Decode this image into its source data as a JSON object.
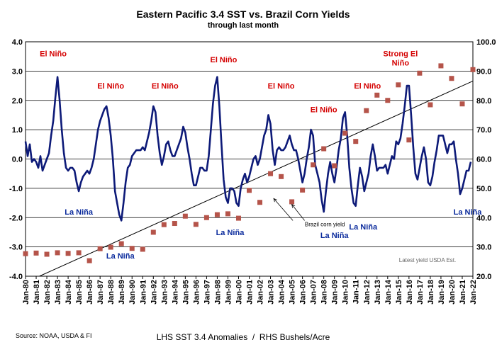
{
  "chart_data": {
    "type": "line",
    "title": "Eastern Pacific 3.4 SST vs. Brazil Corn Yields",
    "subtitle": "through last month",
    "left_axis": {
      "ylim": [
        -4.0,
        4.0
      ],
      "ticks": [
        "-4.0",
        "-3.0",
        "-2.0",
        "-1.0",
        "0.0",
        "1.0",
        "2.0",
        "3.0",
        "4.0"
      ]
    },
    "right_axis": {
      "ylim": [
        20.0,
        100.0
      ],
      "ticks": [
        "20.0",
        "30.0",
        "40.0",
        "50.0",
        "60.0",
        "70.0",
        "80.0",
        "90.0",
        "100.0"
      ]
    },
    "x_ticks": [
      "Jan-80",
      "Jan-81",
      "Jan-82",
      "Jan-83",
      "Jan-84",
      "Jan-85",
      "Jan-86",
      "Jan-87",
      "Jan-88",
      "Jan-89",
      "Jan-90",
      "Jan-91",
      "Jan-92",
      "Jan-93",
      "Jan-94",
      "Jan-95",
      "Jan-96",
      "Jan-97",
      "Jan-98",
      "Jan-99",
      "Jan-00",
      "Jan-01",
      "Jan-02",
      "Jan-03",
      "Jan-04",
      "Jan-05",
      "Jan-06",
      "Jan-07",
      "Jan-08",
      "Jan-09",
      "Jan-10",
      "Jan-11",
      "Jan-12",
      "Jan-13",
      "Jan-14",
      "Jan-15",
      "Jan-16",
      "Jan-17",
      "Jan-18",
      "Jan-19",
      "Jan-20",
      "Jan-21",
      "Jan-22"
    ],
    "grid": "horizontal",
    "series": [
      {
        "name": "SST 3.4 Anomalies",
        "axis": "left",
        "color": "#0d1a78",
        "points": [
          [
            1980.0,
            0.6
          ],
          [
            1980.2,
            0.1
          ],
          [
            1980.4,
            0.5
          ],
          [
            1980.6,
            -0.1
          ],
          [
            1980.8,
            0.0
          ],
          [
            1981.0,
            -0.1
          ],
          [
            1981.2,
            -0.3
          ],
          [
            1981.4,
            0.1
          ],
          [
            1981.6,
            -0.4
          ],
          [
            1981.8,
            -0.2
          ],
          [
            1982.0,
            0.0
          ],
          [
            1982.2,
            0.2
          ],
          [
            1982.4,
            0.8
          ],
          [
            1982.6,
            1.3
          ],
          [
            1982.8,
            2.1
          ],
          [
            1983.0,
            2.8
          ],
          [
            1983.2,
            2.0
          ],
          [
            1983.4,
            1.0
          ],
          [
            1983.6,
            0.2
          ],
          [
            1983.8,
            -0.3
          ],
          [
            1984.0,
            -0.4
          ],
          [
            1984.2,
            -0.3
          ],
          [
            1984.4,
            -0.3
          ],
          [
            1984.6,
            -0.4
          ],
          [
            1984.8,
            -0.8
          ],
          [
            1985.0,
            -1.1
          ],
          [
            1985.2,
            -0.8
          ],
          [
            1985.4,
            -0.6
          ],
          [
            1985.6,
            -0.5
          ],
          [
            1985.8,
            -0.4
          ],
          [
            1986.0,
            -0.5
          ],
          [
            1986.2,
            -0.3
          ],
          [
            1986.4,
            0.0
          ],
          [
            1986.6,
            0.5
          ],
          [
            1986.8,
            1.0
          ],
          [
            1987.0,
            1.3
          ],
          [
            1987.2,
            1.5
          ],
          [
            1987.4,
            1.7
          ],
          [
            1987.6,
            1.8
          ],
          [
            1987.8,
            1.4
          ],
          [
            1988.0,
            0.8
          ],
          [
            1988.2,
            0.0
          ],
          [
            1988.4,
            -1.1
          ],
          [
            1988.6,
            -1.5
          ],
          [
            1988.8,
            -1.9
          ],
          [
            1989.0,
            -2.1
          ],
          [
            1989.2,
            -1.5
          ],
          [
            1989.4,
            -0.8
          ],
          [
            1989.6,
            -0.3
          ],
          [
            1989.8,
            -0.2
          ],
          [
            1990.0,
            0.1
          ],
          [
            1990.2,
            0.2
          ],
          [
            1990.4,
            0.3
          ],
          [
            1990.6,
            0.3
          ],
          [
            1990.8,
            0.3
          ],
          [
            1991.0,
            0.4
          ],
          [
            1991.2,
            0.3
          ],
          [
            1991.4,
            0.6
          ],
          [
            1991.6,
            0.9
          ],
          [
            1991.8,
            1.3
          ],
          [
            1992.0,
            1.8
          ],
          [
            1992.2,
            1.6
          ],
          [
            1992.4,
            0.8
          ],
          [
            1992.6,
            0.2
          ],
          [
            1992.8,
            -0.2
          ],
          [
            1993.0,
            0.1
          ],
          [
            1993.2,
            0.5
          ],
          [
            1993.4,
            0.6
          ],
          [
            1993.6,
            0.3
          ],
          [
            1993.8,
            0.1
          ],
          [
            1994.0,
            0.1
          ],
          [
            1994.2,
            0.3
          ],
          [
            1994.4,
            0.5
          ],
          [
            1994.6,
            0.7
          ],
          [
            1994.8,
            1.1
          ],
          [
            1995.0,
            0.9
          ],
          [
            1995.2,
            0.4
          ],
          [
            1995.4,
            0.0
          ],
          [
            1995.6,
            -0.5
          ],
          [
            1995.8,
            -0.9
          ],
          [
            1996.0,
            -0.9
          ],
          [
            1996.2,
            -0.6
          ],
          [
            1996.4,
            -0.3
          ],
          [
            1996.6,
            -0.3
          ],
          [
            1996.8,
            -0.4
          ],
          [
            1997.0,
            -0.4
          ],
          [
            1997.2,
            0.1
          ],
          [
            1997.4,
            1.0
          ],
          [
            1997.6,
            1.9
          ],
          [
            1997.8,
            2.5
          ],
          [
            1998.0,
            2.8
          ],
          [
            1998.2,
            1.8
          ],
          [
            1998.4,
            0.5
          ],
          [
            1998.6,
            -0.7
          ],
          [
            1998.8,
            -1.3
          ],
          [
            1999.0,
            -1.5
          ],
          [
            1999.2,
            -1.0
          ],
          [
            1999.4,
            -1.0
          ],
          [
            1999.6,
            -1.1
          ],
          [
            1999.8,
            -1.5
          ],
          [
            2000.0,
            -1.6
          ],
          [
            2000.2,
            -1.0
          ],
          [
            2000.4,
            -0.7
          ],
          [
            2000.6,
            -0.5
          ],
          [
            2000.8,
            -0.8
          ],
          [
            2001.0,
            -0.6
          ],
          [
            2001.2,
            -0.3
          ],
          [
            2001.4,
            0.0
          ],
          [
            2001.6,
            0.1
          ],
          [
            2001.8,
            -0.2
          ],
          [
            2002.0,
            0.0
          ],
          [
            2002.2,
            0.4
          ],
          [
            2002.4,
            0.8
          ],
          [
            2002.6,
            1.0
          ],
          [
            2002.8,
            1.5
          ],
          [
            2003.0,
            1.2
          ],
          [
            2003.2,
            0.3
          ],
          [
            2003.4,
            -0.2
          ],
          [
            2003.6,
            0.3
          ],
          [
            2003.8,
            0.4
          ],
          [
            2004.0,
            0.3
          ],
          [
            2004.2,
            0.3
          ],
          [
            2004.4,
            0.4
          ],
          [
            2004.6,
            0.6
          ],
          [
            2004.8,
            0.8
          ],
          [
            2005.0,
            0.5
          ],
          [
            2005.2,
            0.3
          ],
          [
            2005.4,
            0.3
          ],
          [
            2005.6,
            0.0
          ],
          [
            2005.8,
            -0.4
          ],
          [
            2006.0,
            -0.8
          ],
          [
            2006.2,
            -0.5
          ],
          [
            2006.4,
            0.0
          ],
          [
            2006.6,
            0.4
          ],
          [
            2006.8,
            1.0
          ],
          [
            2007.0,
            0.8
          ],
          [
            2007.2,
            -0.2
          ],
          [
            2007.4,
            -0.5
          ],
          [
            2007.6,
            -0.8
          ],
          [
            2007.8,
            -1.4
          ],
          [
            2008.0,
            -1.8
          ],
          [
            2008.2,
            -1.1
          ],
          [
            2008.4,
            -0.5
          ],
          [
            2008.6,
            -0.1
          ],
          [
            2008.8,
            -0.5
          ],
          [
            2009.0,
            -0.8
          ],
          [
            2009.2,
            -0.3
          ],
          [
            2009.4,
            0.3
          ],
          [
            2009.6,
            0.7
          ],
          [
            2009.8,
            1.4
          ],
          [
            2010.0,
            1.6
          ],
          [
            2010.2,
            0.8
          ],
          [
            2010.4,
            -0.3
          ],
          [
            2010.6,
            -1.0
          ],
          [
            2010.8,
            -1.5
          ],
          [
            2011.0,
            -1.6
          ],
          [
            2011.2,
            -0.9
          ],
          [
            2011.4,
            -0.3
          ],
          [
            2011.6,
            -0.6
          ],
          [
            2011.8,
            -1.1
          ],
          [
            2012.0,
            -0.8
          ],
          [
            2012.2,
            -0.5
          ],
          [
            2012.4,
            0.1
          ],
          [
            2012.6,
            0.5
          ],
          [
            2012.8,
            0.1
          ],
          [
            2013.0,
            -0.4
          ],
          [
            2013.2,
            -0.3
          ],
          [
            2013.4,
            -0.3
          ],
          [
            2013.6,
            -0.3
          ],
          [
            2013.8,
            -0.2
          ],
          [
            2014.0,
            -0.5
          ],
          [
            2014.2,
            -0.2
          ],
          [
            2014.4,
            0.1
          ],
          [
            2014.6,
            0.0
          ],
          [
            2014.8,
            0.6
          ],
          [
            2015.0,
            0.5
          ],
          [
            2015.2,
            0.7
          ],
          [
            2015.4,
            1.2
          ],
          [
            2015.6,
            1.8
          ],
          [
            2015.8,
            2.5
          ],
          [
            2016.0,
            2.5
          ],
          [
            2016.2,
            1.5
          ],
          [
            2016.4,
            0.4
          ],
          [
            2016.6,
            -0.5
          ],
          [
            2016.8,
            -0.7
          ],
          [
            2017.0,
            -0.3
          ],
          [
            2017.2,
            0.1
          ],
          [
            2017.4,
            0.4
          ],
          [
            2017.6,
            0.0
          ],
          [
            2017.8,
            -0.8
          ],
          [
            2018.0,
            -0.9
          ],
          [
            2018.2,
            -0.6
          ],
          [
            2018.4,
            -0.1
          ],
          [
            2018.6,
            0.3
          ],
          [
            2018.8,
            0.8
          ],
          [
            2019.0,
            0.8
          ],
          [
            2019.2,
            0.8
          ],
          [
            2019.4,
            0.5
          ],
          [
            2019.6,
            0.2
          ],
          [
            2019.8,
            0.5
          ],
          [
            2020.0,
            0.5
          ],
          [
            2020.2,
            0.6
          ],
          [
            2020.4,
            0.0
          ],
          [
            2020.6,
            -0.5
          ],
          [
            2020.8,
            -1.2
          ],
          [
            2021.0,
            -1.0
          ],
          [
            2021.2,
            -0.7
          ],
          [
            2021.4,
            -0.4
          ],
          [
            2021.6,
            -0.4
          ],
          [
            2021.8,
            -0.1
          ]
        ]
      },
      {
        "name": "Brazil corn yield",
        "axis": "right",
        "color": "#b5544a",
        "x": [
          1980,
          1981,
          1982,
          1983,
          1984,
          1985,
          1986,
          1987,
          1988,
          1989,
          1990,
          1991,
          1992,
          1993,
          1994,
          1995,
          1996,
          1997,
          1998,
          1999,
          2000,
          2001,
          2002,
          2003,
          2004,
          2005,
          2006,
          2007,
          2008,
          2009,
          2010,
          2011,
          2012,
          2013,
          2014,
          2015,
          2016,
          2017,
          2018,
          2019,
          2020,
          2021,
          2022
        ],
        "values": [
          27.7,
          27.9,
          27.5,
          28.0,
          27.8,
          28.0,
          25.3,
          29.4,
          29.9,
          31.1,
          29.5,
          29.2,
          35.0,
          37.6,
          38.0,
          40.5,
          37.7,
          40.0,
          41.0,
          41.3,
          39.8,
          49.3,
          45.2,
          55.0,
          54.0,
          45.4,
          49.4,
          58.0,
          63.5,
          57.7,
          68.8,
          66.0,
          76.5,
          81.8,
          80.0,
          85.3,
          66.5,
          89.3,
          78.5,
          91.8,
          87.5,
          78.8,
          90.5
        ]
      },
      {
        "name": "trend",
        "axis": "right",
        "color": "#000000",
        "from": [
          1981.3,
          20.0
        ],
        "to": [
          2022.0,
          86.6
        ]
      }
    ],
    "annotations": {
      "el_nino": [
        {
          "text": "El Niño",
          "x": 1982.6,
          "y": 3.5
        },
        {
          "text": "El Niño",
          "x": 1988.0,
          "y": 2.4
        },
        {
          "text": "El Niño",
          "x": 1993.1,
          "y": 2.4
        },
        {
          "text": "El Niño",
          "x": 1998.6,
          "y": 3.3
        },
        {
          "text": "El Niño",
          "x": 2004.0,
          "y": 2.4
        },
        {
          "text": "El Niño",
          "x": 2008.0,
          "y": 1.6
        },
        {
          "text": "El Niño",
          "x": 2012.1,
          "y": 2.4
        }
      ],
      "strong_el_nino": {
        "line1": "Strong El",
        "line2": "Niño",
        "x": 2015.2,
        "y": 3.5
      },
      "la_nina": [
        {
          "text": "La Niña",
          "x": 1985.0,
          "y": -1.9
        },
        {
          "text": "La Niña",
          "x": 1988.9,
          "y": -3.4
        },
        {
          "text": "La Niña",
          "x": 1999.2,
          "y": -2.6
        },
        {
          "text": "La Niña",
          "x": 2009.0,
          "y": -2.7
        },
        {
          "text": "La Niña",
          "x": 2011.7,
          "y": -2.4
        },
        {
          "text": "La Niña",
          "x": 2021.5,
          "y": -1.9
        }
      ],
      "brazil_label": {
        "text": "Brazil corn yield",
        "x": 2008.1,
        "y": -2.3
      },
      "brazil_arrows": [
        {
          "from": [
            2005.1,
            -2.1
          ],
          "to": [
            2003.3,
            -1.35
          ]
        },
        {
          "from": [
            2006.2,
            -2.1
          ],
          "to": [
            2005.0,
            -1.55
          ]
        }
      ]
    },
    "notes": {
      "latest": "Latest yield USDA Est.",
      "source": "Source: NOAA, USDA & FI",
      "units": "LHS SST 3.4 Anomalies  /  RHS Bushels/Acre"
    }
  }
}
